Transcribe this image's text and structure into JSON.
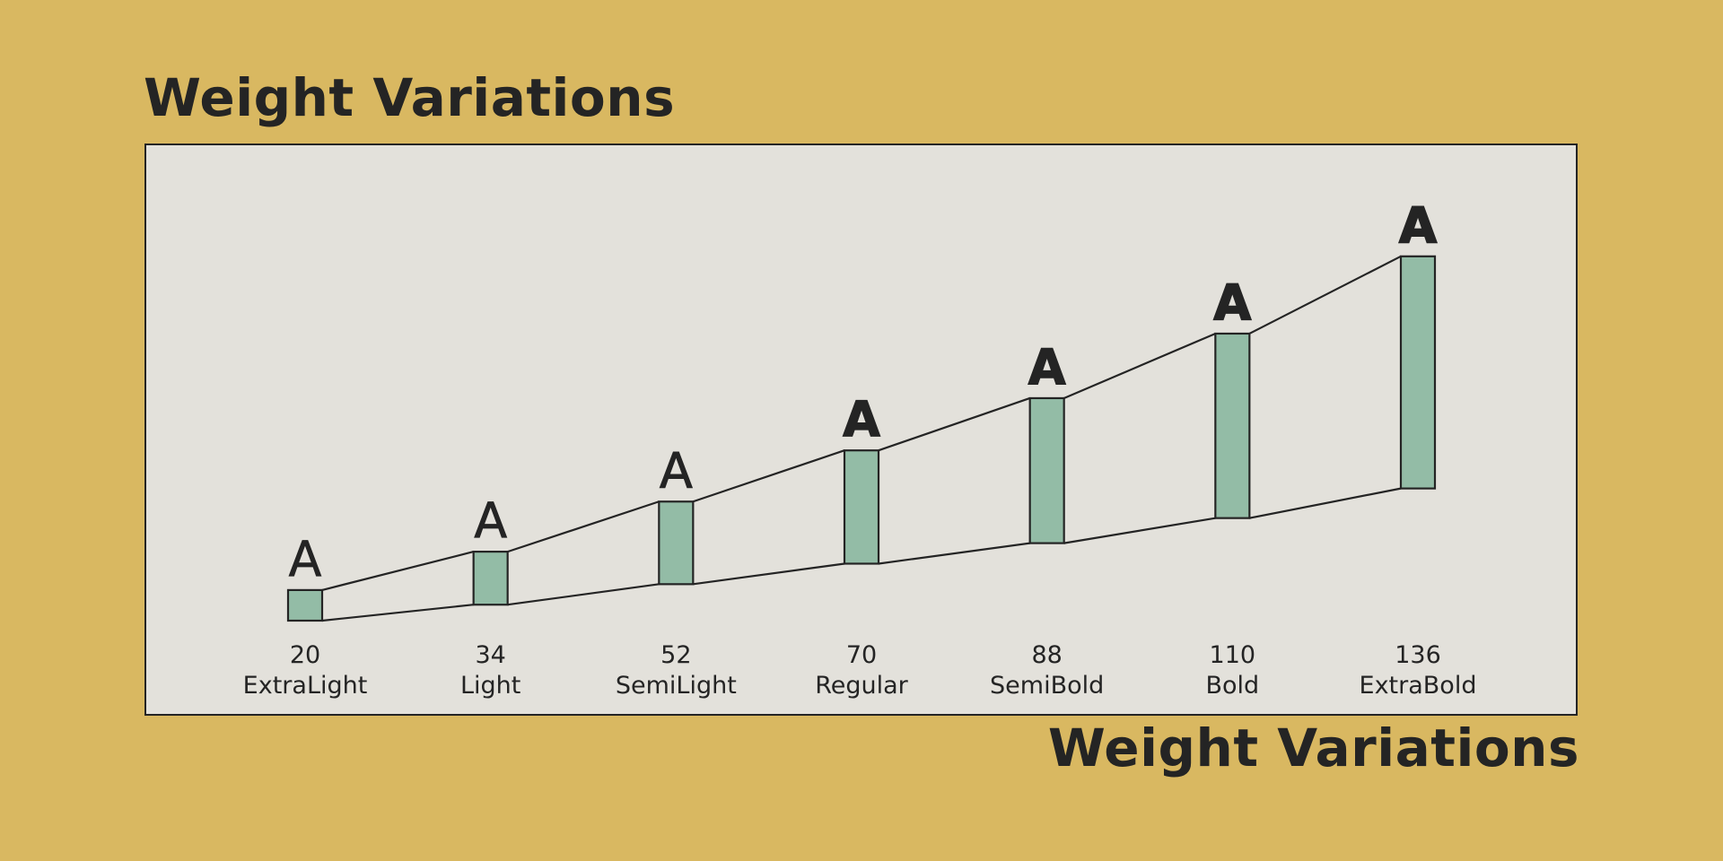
{
  "heading_top": "Weight Variations",
  "heading_bottom": "Weight Variations",
  "colors": {
    "background": "#D9B861",
    "panel": "#E3E1DB",
    "bar_fill": "#93BCA6",
    "ink": "#242424"
  },
  "chart_data": {
    "type": "bar",
    "title": "Weight Variations",
    "glyph": "A",
    "categories": [
      "ExtraLight",
      "Light",
      "SemiLight",
      "Regular",
      "SemiBold",
      "Bold",
      "ExtraBold"
    ],
    "values": [
      20,
      34,
      52,
      70,
      88,
      110,
      136
    ],
    "value_labels": [
      "20",
      "34",
      "52",
      "70",
      "88",
      "110",
      "136"
    ],
    "grid": false,
    "legend": "none"
  }
}
